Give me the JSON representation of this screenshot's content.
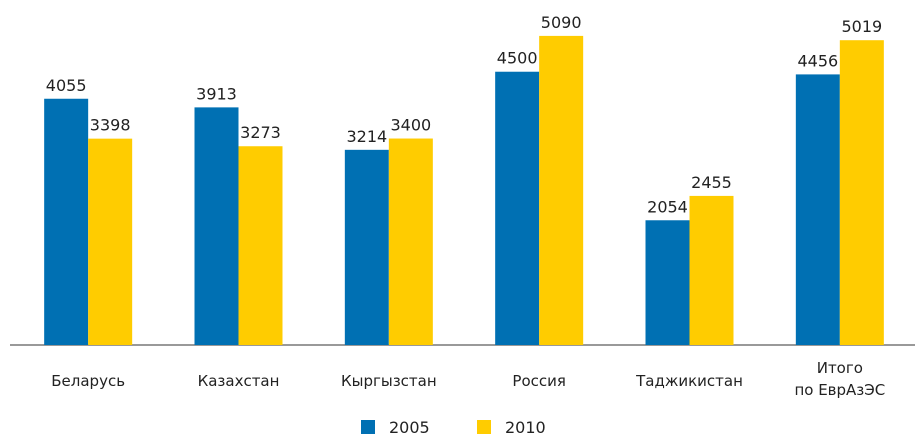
{
  "chart_data": {
    "type": "bar",
    "categories": [
      "Беларусь",
      "Казахстан",
      "Кыргызстан",
      "Россия",
      "Таджикистан",
      "Итого\nпо ЕврАзЭС"
    ],
    "series": [
      {
        "name": "2005",
        "color": "#0070b3",
        "values": [
          4055,
          3913,
          3214,
          4500,
          2054,
          4456
        ]
      },
      {
        "name": "2010",
        "color": "#ffcc00",
        "values": [
          3398,
          3273,
          3400,
          5090,
          2455,
          5019
        ]
      }
    ],
    "ylim": [
      0,
      5500
    ]
  }
}
